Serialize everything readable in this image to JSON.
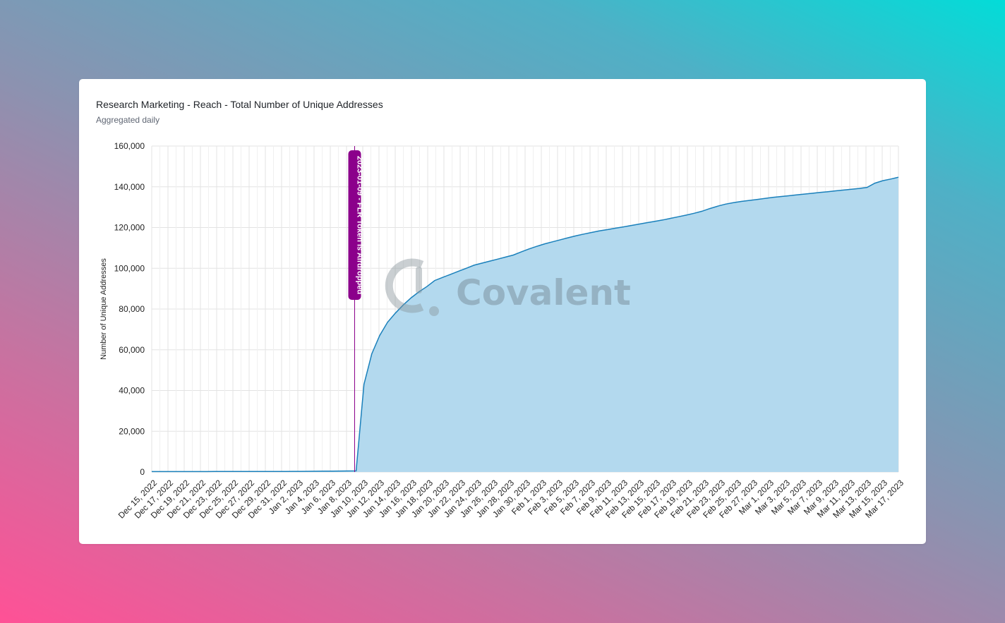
{
  "card": {
    "title": "Research Marketing - Reach - Total Number of Unique Addresses",
    "subtitle": "Aggregated daily"
  },
  "watermark": {
    "text": "Covalent",
    "icon": "covalent-logo-icon"
  },
  "colors": {
    "area_fill": "#b3d9ee",
    "line": "#1a80bb",
    "grid": "#e3e3e3",
    "annotation": "#8b008b"
  },
  "chart_data": {
    "type": "area",
    "ylabel": "Number of Unique Addresses",
    "xlabel": "",
    "ylim": [
      0,
      160000
    ],
    "yticks": [
      0,
      20000,
      40000,
      60000,
      80000,
      100000,
      120000,
      140000,
      160000
    ],
    "ytick_labels": [
      "0",
      "20,000",
      "40,000",
      "60,000",
      "80,000",
      "100,000",
      "120,000",
      "140,000",
      "160,000"
    ],
    "x_start": "2022-12-15",
    "x_end": "2023-03-17",
    "xtick_labels": [
      "Dec 15, 2022",
      "Dec 17, 2022",
      "Dec 19, 2022",
      "Dec 21, 2022",
      "Dec 23, 2022",
      "Dec 25, 2022",
      "Dec 27, 2022",
      "Dec 29, 2022",
      "Dec 31, 2022",
      "Jan 2, 2023",
      "Jan 4, 2023",
      "Jan 6, 2023",
      "Jan 8, 2023",
      "Jan 10, 2023",
      "Jan 12, 2023",
      "Jan 14, 2023",
      "Jan 16, 2023",
      "Jan 18, 2023",
      "Jan 20, 2023",
      "Jan 22, 2023",
      "Jan 24, 2023",
      "Jan 26, 2023",
      "Jan 28, 2023",
      "Jan 30, 2023",
      "Feb 1, 2023",
      "Feb 3, 2023",
      "Feb 5, 2023",
      "Feb 7, 2023",
      "Feb 9, 2023",
      "Feb 11, 2023",
      "Feb 13, 2023",
      "Feb 15, 2023",
      "Feb 17, 2023",
      "Feb 19, 2023",
      "Feb 21, 2023",
      "Feb 23, 2023",
      "Feb 25, 2023",
      "Feb 27, 2023",
      "Mar 1, 2023",
      "Mar 3, 2023",
      "Mar 5, 2023",
      "Mar 7, 2023",
      "Mar 9, 2023",
      "Mar 11, 2023",
      "Mar 13, 2023",
      "Mar 15, 2023",
      "Mar 17, 2023"
    ],
    "grid": true,
    "legend": "none",
    "series": [
      {
        "values": [
          200,
          200,
          210,
          210,
          210,
          220,
          220,
          220,
          230,
          230,
          230,
          240,
          240,
          250,
          250,
          260,
          270,
          280,
          300,
          320,
          350,
          380,
          420,
          450,
          480,
          520,
          550,
          43000,
          58000,
          67000,
          73500,
          78000,
          82000,
          85500,
          88500,
          91000,
          94000,
          95500,
          97000,
          98500,
          100000,
          101500,
          102500,
          103500,
          104500,
          105500,
          106500,
          108000,
          109500,
          110800,
          112000,
          113000,
          114000,
          115000,
          116000,
          116800,
          117600,
          118400,
          119000,
          119700,
          120300,
          121000,
          121700,
          122400,
          123000,
          123700,
          124500,
          125300,
          126100,
          127000,
          128000,
          129300,
          130500,
          131500,
          132200,
          132800,
          133300,
          133800,
          134300,
          134800,
          135200,
          135600,
          136000,
          136400,
          136800,
          137200,
          137600,
          138000,
          138400,
          138800,
          139200,
          139700,
          141800,
          143000,
          143800,
          144700
        ]
      }
    ],
    "annotations": [
      {
        "x": "2023-01-09",
        "label": "2023-01-09 - FLR Token is Airdropped"
      }
    ]
  }
}
